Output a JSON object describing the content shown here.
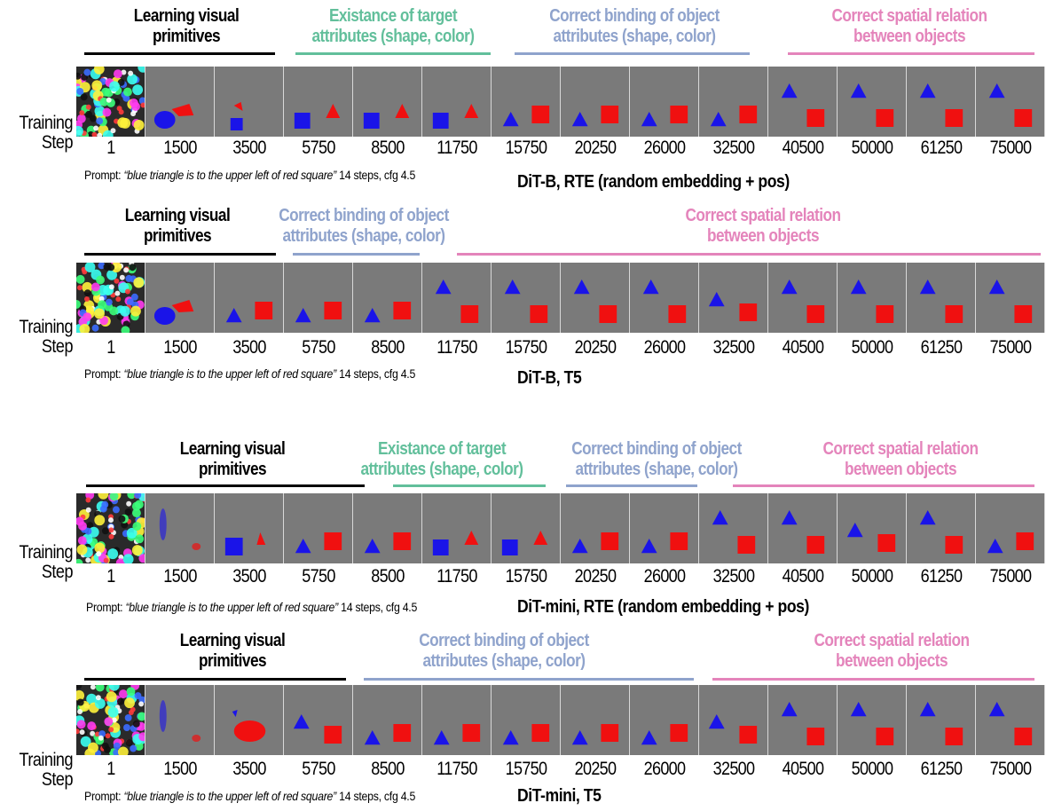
{
  "colors": {
    "primitives": "#000000",
    "existence": "#62bf9b",
    "binding": "#8fa3cc",
    "spatial": "#e484bb",
    "frame_bg": "#7a7a7a",
    "blue_shape": "#1a14e8",
    "red_shape": "#f01010"
  },
  "side_label": {
    "line1": "Training",
    "line2": "Step"
  },
  "prompt_label": "Prompt:",
  "prompt_text": "“blue triangle is to the upper left of red square”",
  "prompt_settings": "14 steps, cfg 4.5",
  "panels": [
    {
      "model": "DiT-B, RTE (random embedding + pos)",
      "phases": [
        {
          "kind": "primitives",
          "line1": "Learning visual",
          "line2": "primitives"
        },
        {
          "kind": "existence",
          "line1": "Existance of target",
          "line2": "attributes (shape, color)"
        },
        {
          "kind": "binding",
          "line1": "Correct binding of object",
          "line2": "attributes (shape, color)"
        },
        {
          "kind": "spatial",
          "line1": "Correct spatial relation",
          "line2": "between objects"
        }
      ],
      "steps": [
        "1",
        "1500",
        "3500",
        "5750",
        "8500",
        "11750",
        "15750",
        "20250",
        "26000",
        "32500",
        "40500",
        "50000",
        "61250",
        "75000"
      ]
    },
    {
      "model": "DiT-B, T5",
      "phases": [
        {
          "kind": "primitives",
          "line1": "Learning visual",
          "line2": "primitives"
        },
        {
          "kind": "binding",
          "line1": "Correct binding of object",
          "line2": "attributes (shape, color)"
        },
        {
          "kind": "spatial",
          "line1": "Correct spatial relation",
          "line2": "between objects"
        }
      ],
      "steps": [
        "1",
        "1500",
        "3500",
        "5750",
        "8500",
        "11750",
        "15750",
        "20250",
        "26000",
        "32500",
        "40500",
        "50000",
        "61250",
        "75000"
      ]
    },
    {
      "model": "DiT-mini, RTE (random embedding + pos)",
      "phases": [
        {
          "kind": "primitives",
          "line1": "Learning visual",
          "line2": "primitives"
        },
        {
          "kind": "existence",
          "line1": "Existance of target",
          "line2": "attributes (shape, color)"
        },
        {
          "kind": "binding",
          "line1": "Correct binding of object",
          "line2": "attributes (shape, color)"
        },
        {
          "kind": "spatial",
          "line1": "Correct spatial relation",
          "line2": "between objects"
        }
      ],
      "steps": [
        "1",
        "1500",
        "3500",
        "5750",
        "8500",
        "11750",
        "15750",
        "20250",
        "26000",
        "32500",
        "40500",
        "50000",
        "61250",
        "75000"
      ]
    },
    {
      "model": "DiT-mini, T5",
      "phases": [
        {
          "kind": "primitives",
          "line1": "Learning visual",
          "line2": "primitives"
        },
        {
          "kind": "binding",
          "line1": "Correct binding of object",
          "line2": "attributes (shape, color)"
        },
        {
          "kind": "spatial",
          "line1": "Correct spatial relation",
          "line2": "between objects"
        }
      ],
      "steps": [
        "1",
        "1500",
        "3500",
        "5750",
        "8500",
        "11750",
        "15750",
        "20250",
        "26000",
        "32500",
        "40500",
        "50000",
        "61250",
        "75000"
      ]
    }
  ]
}
